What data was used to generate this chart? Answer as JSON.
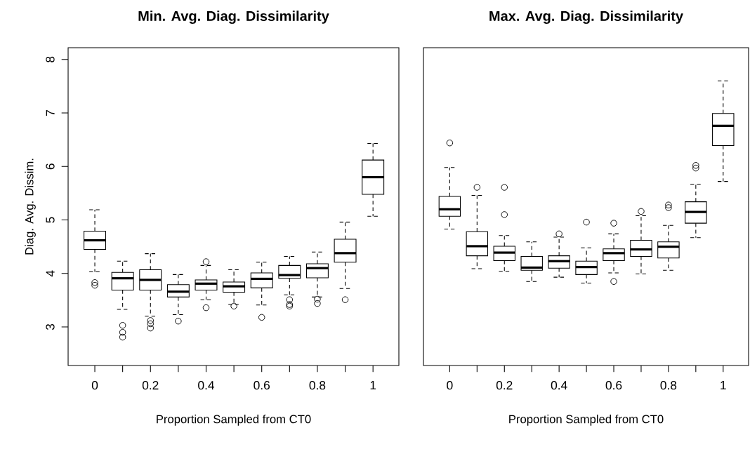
{
  "chart_data": [
    {
      "type": "box",
      "title": "Min. Avg. Diag. Dissimilarity",
      "xlabel": "Proportion Sampled from CT0",
      "ylabel": "Diag. Avg. Dissim.",
      "categories": [
        "0",
        null,
        "0.2",
        null,
        "0.4",
        null,
        "0.6",
        null,
        "0.8",
        null,
        "1"
      ],
      "ylim": [
        2.28,
        8.22
      ],
      "yticks": [
        3,
        4,
        5,
        6,
        7,
        8
      ],
      "boxes": [
        {
          "low": 4.03,
          "q1": 4.45,
          "median": 4.62,
          "q3": 4.79,
          "high": 5.19,
          "outliers": [
            3.83,
            3.78
          ]
        },
        {
          "low": 3.33,
          "q1": 3.69,
          "median": 3.91,
          "q3": 4.02,
          "high": 4.23,
          "outliers": [
            3.03,
            2.9,
            2.81
          ]
        },
        {
          "low": 3.2,
          "q1": 3.69,
          "median": 3.88,
          "q3": 4.07,
          "high": 4.37,
          "outliers": [
            3.12,
            3.06,
            2.98
          ]
        },
        {
          "low": 3.23,
          "q1": 3.56,
          "median": 3.66,
          "q3": 3.79,
          "high": 3.98,
          "outliers": [
            3.11
          ]
        },
        {
          "low": 3.51,
          "q1": 3.69,
          "median": 3.81,
          "q3": 3.88,
          "high": 4.15,
          "outliers": [
            4.22,
            3.36
          ]
        },
        {
          "low": 3.42,
          "q1": 3.65,
          "median": 3.76,
          "q3": 3.84,
          "high": 4.07,
          "outliers": [
            3.39
          ]
        },
        {
          "low": 3.41,
          "q1": 3.73,
          "median": 3.9,
          "q3": 4.01,
          "high": 4.21,
          "outliers": [
            3.18
          ]
        },
        {
          "low": 3.6,
          "q1": 3.91,
          "median": 3.97,
          "q3": 4.15,
          "high": 4.32,
          "outliers": [
            3.51,
            3.42,
            3.39
          ]
        },
        {
          "low": 3.56,
          "q1": 3.92,
          "median": 4.1,
          "q3": 4.18,
          "high": 4.4,
          "outliers": [
            3.52,
            3.44
          ]
        },
        {
          "low": 3.72,
          "q1": 4.21,
          "median": 4.38,
          "q3": 4.64,
          "high": 4.96,
          "outliers": [
            3.51
          ]
        },
        {
          "low": 5.07,
          "q1": 5.48,
          "median": 5.8,
          "q3": 6.12,
          "high": 6.43
        }
      ]
    },
    {
      "type": "box",
      "title": "Max. Avg. Diag. Dissimilarity",
      "xlabel": "Proportion Sampled from CT0",
      "categories": [
        "0",
        null,
        "0.2",
        null,
        "0.4",
        null,
        "0.6",
        null,
        "0.8",
        null,
        "1"
      ],
      "ylim": [
        2.28,
        8.22
      ],
      "tick_labels": "x",
      "boxes": [
        {
          "low": 4.83,
          "q1": 5.07,
          "median": 5.2,
          "q3": 5.44,
          "high": 5.98,
          "outliers": [
            6.44
          ]
        },
        {
          "low": 4.09,
          "q1": 4.33,
          "median": 4.51,
          "q3": 4.78,
          "high": 5.46,
          "outliers": [
            5.61
          ]
        },
        {
          "low": 4.04,
          "q1": 4.24,
          "median": 4.39,
          "q3": 4.51,
          "high": 4.71,
          "outliers": [
            5.61,
            5.1
          ]
        },
        {
          "low": 3.85,
          "q1": 4.06,
          "median": 4.11,
          "q3": 4.32,
          "high": 4.59
        },
        {
          "low": 3.93,
          "q1": 4.1,
          "median": 4.23,
          "q3": 4.33,
          "high": 4.68,
          "outliers": [
            4.74
          ]
        },
        {
          "low": 3.82,
          "q1": 3.98,
          "median": 4.12,
          "q3": 4.23,
          "high": 4.48,
          "outliers": [
            4.96
          ]
        },
        {
          "low": 4.01,
          "q1": 4.24,
          "median": 4.38,
          "q3": 4.46,
          "high": 4.74,
          "outliers": [
            4.94,
            3.85
          ]
        },
        {
          "low": 3.99,
          "q1": 4.32,
          "median": 4.45,
          "q3": 4.62,
          "high": 5.08,
          "outliers": [
            5.16
          ]
        },
        {
          "low": 4.06,
          "q1": 4.29,
          "median": 4.5,
          "q3": 4.59,
          "high": 4.9,
          "outliers": [
            5.28,
            5.23
          ]
        },
        {
          "low": 4.67,
          "q1": 4.94,
          "median": 5.15,
          "q3": 5.34,
          "high": 5.67,
          "outliers": [
            6.02,
            5.97
          ]
        },
        {
          "low": 5.72,
          "q1": 6.39,
          "median": 6.76,
          "q3": 6.99,
          "high": 7.6
        }
      ]
    }
  ]
}
